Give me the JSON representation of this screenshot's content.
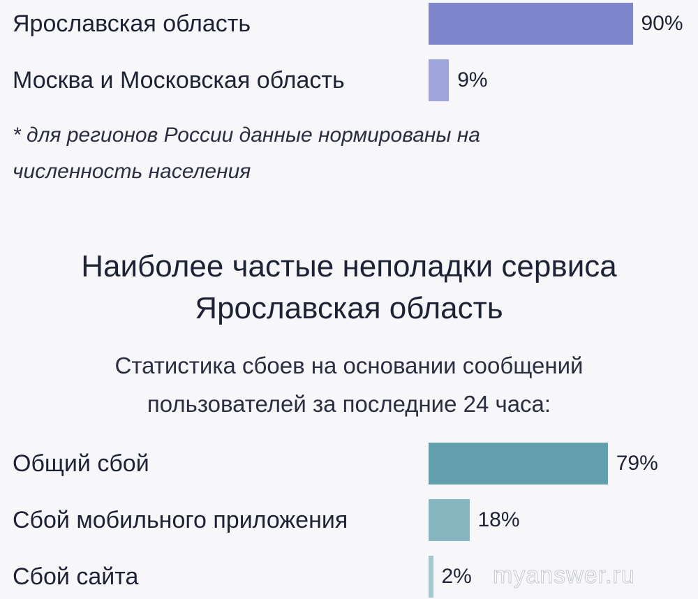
{
  "regions_chart": {
    "rows": [
      {
        "label": "Ярославская область",
        "value": 90,
        "value_label": "90%",
        "color": "#7e86cc"
      },
      {
        "label": "Москва и Московская область",
        "value": 9,
        "value_label": "9%",
        "color": "#a0a5db"
      }
    ],
    "footnote_line1": "* для регионов России данные нормированы на",
    "footnote_line2": "численность населения"
  },
  "issues_chart": {
    "title_line1": "Наиболее частые неполадки сервиса",
    "title_line2": "Ярославская область",
    "subtitle_line1": "Статистика сбоев на основании сообщений",
    "subtitle_line2": "пользователей за последние 24 часа:",
    "rows": [
      {
        "label": "Общий сбой",
        "value": 79,
        "value_label": "79%",
        "color": "#63a0ad"
      },
      {
        "label": "Сбой мобильного приложения",
        "value": 18,
        "value_label": "18%",
        "color": "#86b6c0"
      },
      {
        "label": "Сбой сайта",
        "value": 2,
        "value_label": "2%",
        "color": "#a3c8cf"
      }
    ]
  },
  "chart_data": [
    {
      "type": "bar",
      "orientation": "horizontal",
      "categories": [
        "Ярославская область",
        "Москва и Московская область"
      ],
      "values": [
        90,
        9
      ],
      "unit": "%",
      "footnote": "* для регионов России данные нормированы на численность населения"
    },
    {
      "type": "bar",
      "orientation": "horizontal",
      "title": "Наиболее частые неполадки сервиса Ярославская область",
      "subtitle": "Статистика сбоев на основании сообщений пользователей за последние 24 часа:",
      "categories": [
        "Общий сбой",
        "Сбой мобильного приложения",
        "Сбой сайта"
      ],
      "values": [
        79,
        18,
        2
      ],
      "unit": "%"
    }
  ],
  "watermark": "myanswer.ru"
}
